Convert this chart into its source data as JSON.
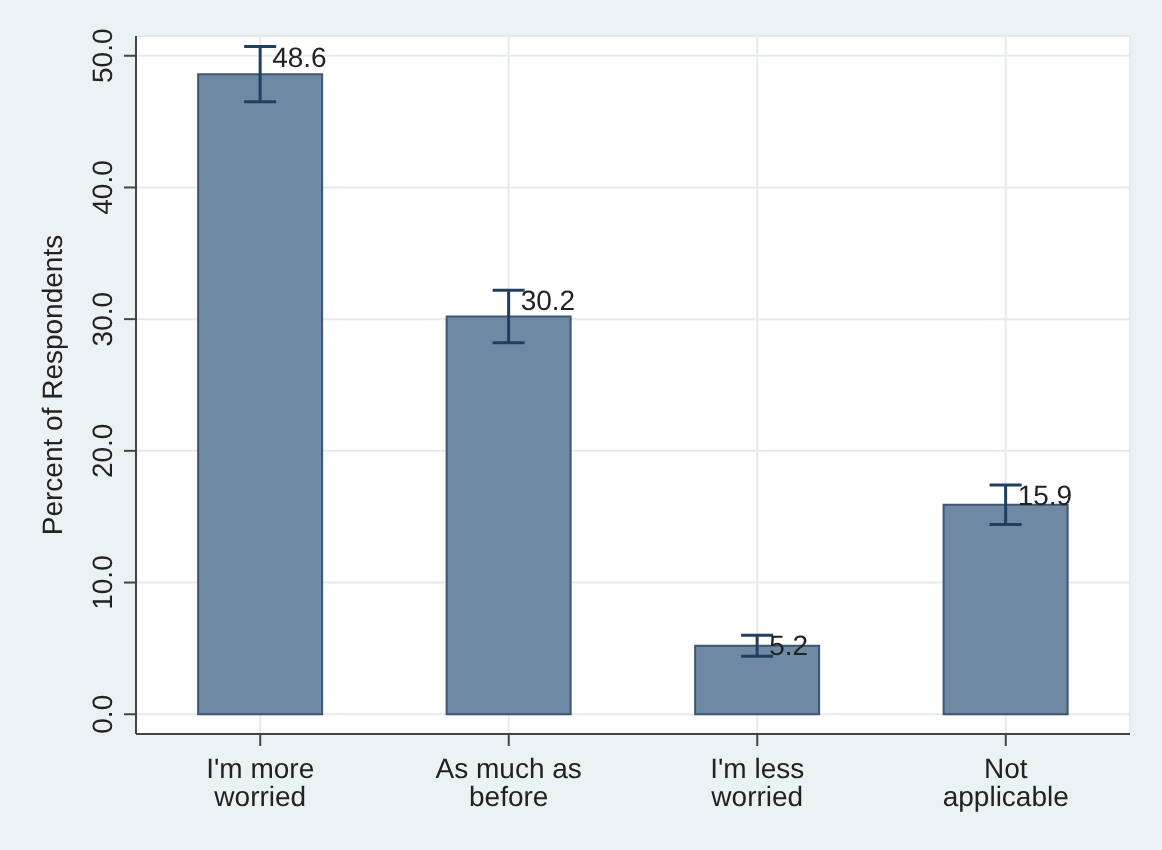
{
  "chart_data": {
    "type": "bar",
    "ylabel": "Percent of Respondents",
    "categories": [
      "I'm more worried",
      "As much as before",
      "I'm less worried",
      "Not applicable"
    ],
    "values": [
      48.6,
      30.2,
      5.2,
      15.9
    ],
    "errors": [
      2.1,
      2.0,
      0.8,
      1.5
    ],
    "color": "#6f88a3",
    "ylim": [
      -1.5,
      51.5
    ],
    "yticks": [
      {
        "value": 0,
        "label": "0.0"
      },
      {
        "value": 10,
        "label": "10.0"
      },
      {
        "value": 20,
        "label": "20.0"
      },
      {
        "value": 30,
        "label": "30.0"
      },
      {
        "value": 40,
        "label": "40.0"
      },
      {
        "value": 50,
        "label": "50.0"
      }
    ],
    "grid": true,
    "data_labels": true,
    "legend": false
  }
}
